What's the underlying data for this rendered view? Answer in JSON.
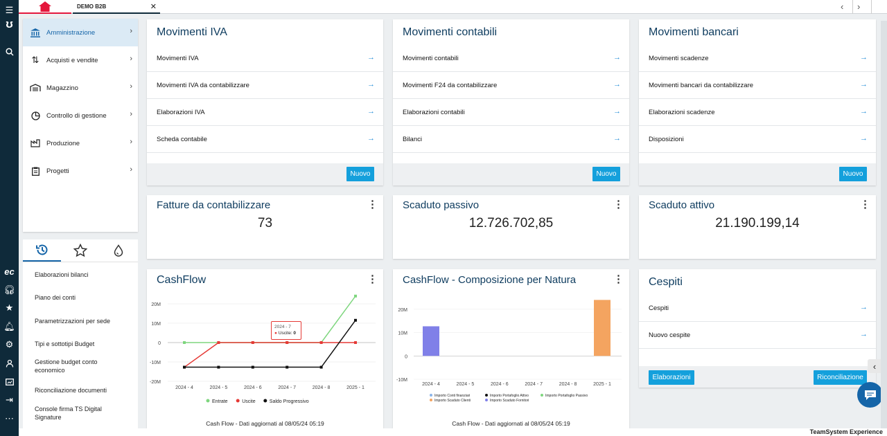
{
  "tabs": {
    "doc_tab": "DEMO B2B"
  },
  "left_nav": {
    "items": [
      "Amministrazione",
      "Acquisti e vendite",
      "Magazzino",
      "Controllo di gestione",
      "Produzione",
      "Progetti"
    ]
  },
  "recent": {
    "items": [
      "Elaborazioni bilanci",
      "Piano dei conti",
      "Parametrizzazioni per sede",
      "Tipi e sottotipi Budget",
      "Gestione budget conto economico",
      "Riconciliazione documenti",
      "Console firma TS Digital Signature"
    ]
  },
  "cards": {
    "iva": {
      "title": "Movimenti IVA",
      "rows": [
        "Movimenti IVA",
        "Movimenti IVA da contabilizzare",
        "Elaborazioni IVA",
        "Scheda contabile"
      ],
      "button": "Nuovo"
    },
    "contabili": {
      "title": "Movimenti contabili",
      "rows": [
        "Movimenti contabili",
        "Movimenti F24 da contabilizzare",
        "Elaborazioni contabili",
        "Bilanci"
      ],
      "button": "Nuovo"
    },
    "bancari": {
      "title": "Movimenti bancari",
      "rows": [
        "Movimenti scadenze",
        "Movimenti bancari da contabilizzare",
        "Elaborazioni scadenze",
        "Disposizioni"
      ],
      "button": "Nuovo"
    },
    "fatture": {
      "title": "Fatture da contabilizzare",
      "value": "73"
    },
    "passivo": {
      "title": "Scaduto passivo",
      "value": "12.726.702,85"
    },
    "attivo": {
      "title": "Scaduto attivo",
      "value": "21.190.199,14"
    },
    "cashflow": {
      "title": "CashFlow",
      "footer": "Cash Flow - Dati aggiornati al 08/05/24 05:19",
      "tooltip_title": "2024 - 7",
      "tooltip_label": "Uscite: ",
      "tooltip_value": "0"
    },
    "natura": {
      "title": "CashFlow - Composizione per Natura",
      "footer": "Cash Flow - Dati aggiornati al 08/05/24 05:19"
    },
    "cespiti": {
      "title": "Cespiti",
      "rows": [
        "Cespiti",
        "Nuovo cespite"
      ],
      "btn_left": "Elaborazioni",
      "btn_right": "Riconciliazione"
    }
  },
  "bottom_bar": "TeamSystem Experience",
  "chart_data": [
    {
      "type": "line",
      "title": "CashFlow",
      "categories": [
        "2024 - 4",
        "2024 - 5",
        "2024 - 6",
        "2024 - 7",
        "2024 - 8",
        "2025 - 1"
      ],
      "yticks": [
        "20M",
        "10M",
        "0",
        "-10M",
        "-20M"
      ],
      "ylim": [
        -20000000,
        20000000
      ],
      "series": [
        {
          "name": "Entrate",
          "color": "#7ed67e",
          "values": [
            0,
            0,
            0,
            0,
            0,
            24000000
          ]
        },
        {
          "name": "Uscite",
          "color": "#e53935",
          "values": [
            -12700000,
            0,
            0,
            0,
            0,
            0
          ]
        },
        {
          "name": "Saldo Progressivo",
          "color": "#111111",
          "values": [
            -12700000,
            -12700000,
            -12700000,
            -12700000,
            -12700000,
            11500000
          ]
        }
      ]
    },
    {
      "type": "bar",
      "title": "CashFlow - Composizione per Natura",
      "categories": [
        "2024 - 4",
        "2024 - 5",
        "2024 - 6",
        "2024 - 7",
        "2024 - 8",
        "2025 - 1"
      ],
      "yticks": [
        "20M",
        "10M",
        "0",
        "-10M"
      ],
      "ylim": [
        -10000000,
        25000000
      ],
      "series": [
        {
          "name": "Importo Conti finanziari",
          "color": "#8ab4e8",
          "values": [
            0,
            0,
            0,
            0,
            0,
            0
          ]
        },
        {
          "name": "Importo Portafoglio Attivo",
          "color": "#111111",
          "values": [
            0,
            0,
            0,
            0,
            0,
            0
          ]
        },
        {
          "name": "Importo Portafoglio Passivo",
          "color": "#7ed67e",
          "values": [
            0,
            0,
            0,
            0,
            0,
            0
          ]
        },
        {
          "name": "Importo Scaduto Clienti",
          "color": "#f4a460",
          "values": [
            0,
            0,
            0,
            0,
            0,
            24000000
          ]
        },
        {
          "name": "Importo Scaduto Fornitori",
          "color": "#8080e8",
          "values": [
            12700000,
            0,
            0,
            0,
            0,
            0
          ]
        }
      ]
    }
  ]
}
